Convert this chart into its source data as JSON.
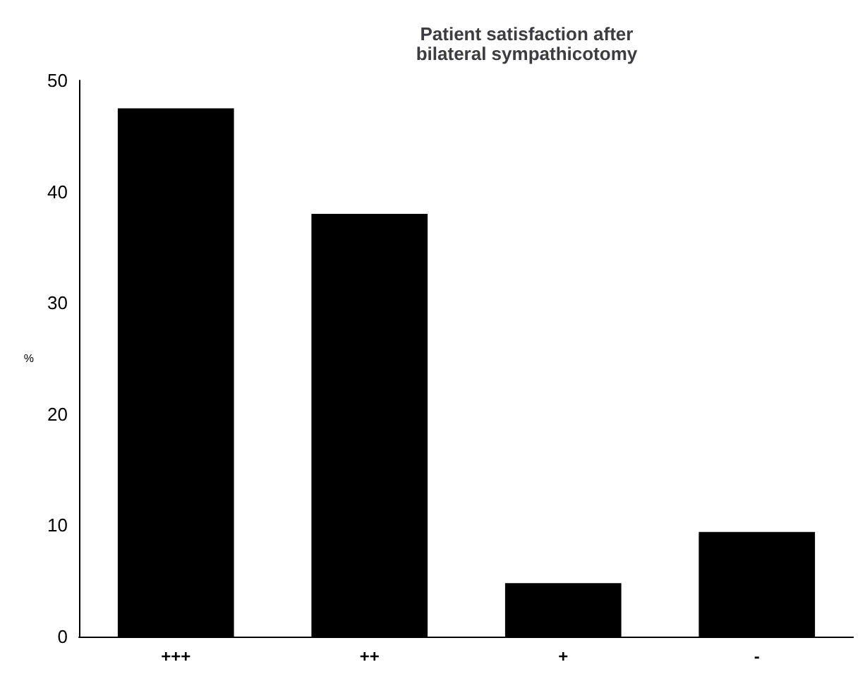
{
  "chart_data": {
    "type": "bar",
    "title": "Patient satisfaction after\nbilateral sympathicotomy",
    "ylabel": "%",
    "categories": [
      "+++",
      "++",
      "+",
      "-"
    ],
    "values": [
      47.5,
      38,
      4.8,
      9.4
    ],
    "color": "#000000",
    "ylim": [
      0,
      50
    ],
    "yticks": [
      0,
      10,
      20,
      30,
      40,
      50
    ],
    "grid": false
  }
}
